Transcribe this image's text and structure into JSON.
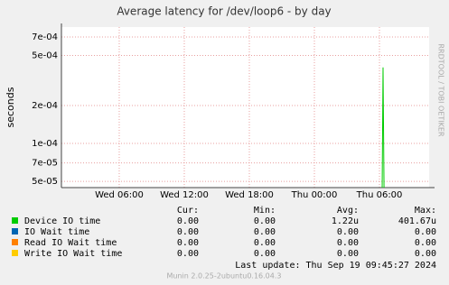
{
  "chart_data": {
    "type": "line",
    "title": "Average latency for /dev/loop6 - by day",
    "y_label": "seconds",
    "side_text": "RRDTOOL / TOBI OETIKER",
    "log_y": true,
    "grid": true,
    "ylim": [
      4.46e-05,
      0.00084
    ],
    "yticks": [
      {
        "value": 5e-05,
        "label": "5e-05"
      },
      {
        "value": 7e-05,
        "label": "7e-05"
      },
      {
        "value": 0.0001,
        "label": "1e-04"
      },
      {
        "value": 0.0002,
        "label": "2e-04"
      },
      {
        "value": 0.0005,
        "label": "5e-04"
      },
      {
        "value": 0.0007,
        "label": "7e-04"
      }
    ],
    "xlim": [
      0.67,
      34.58
    ],
    "xticks": [
      {
        "value": 6,
        "label": "Wed 06:00"
      },
      {
        "value": 12,
        "label": "Wed 12:00"
      },
      {
        "value": 18,
        "label": "Wed 18:00"
      },
      {
        "value": 24,
        "label": "Thu 00:00"
      },
      {
        "value": 30,
        "label": "Thu 06:00"
      }
    ],
    "stats_headers": [
      "Cur:",
      "Min:",
      "Avg:",
      "Max:"
    ],
    "series": [
      {
        "name": "Device IO time",
        "color": "#00cc00",
        "x": [
          30.25,
          30.33,
          30.42
        ],
        "values": [
          0,
          0.0004017,
          0
        ],
        "stats": [
          "0.00",
          "0.00",
          "1.22u",
          "401.67u"
        ]
      },
      {
        "name": "IO Wait time",
        "color": "#0066b3",
        "stats": [
          "0.00",
          "0.00",
          "0.00",
          "0.00"
        ]
      },
      {
        "name": "Read IO Wait time",
        "color": "#ff8000",
        "stats": [
          "0.00",
          "0.00",
          "0.00",
          "0.00"
        ]
      },
      {
        "name": "Write IO Wait time",
        "color": "#ffcc00",
        "stats": [
          "0.00",
          "0.00",
          "0.00",
          "0.00"
        ]
      }
    ],
    "last_update": "Last update:  Thu Sep 19 09:45:27 2024",
    "footer": "Munin 2.0.25-2ubuntu0.16.04.3"
  }
}
